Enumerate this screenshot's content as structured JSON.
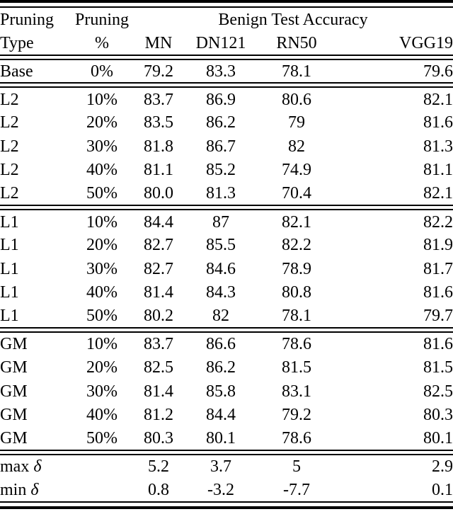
{
  "colors": {
    "text": "#000000",
    "background": "#ffffff",
    "rule": "#000000"
  },
  "table": {
    "header": {
      "col1": [
        "Pruning",
        "Type"
      ],
      "col2": [
        "Pruning",
        "%"
      ],
      "group_label": "Benign Test Accuracy",
      "models": [
        "MN",
        "DN121",
        "RN50",
        "VGG19"
      ]
    },
    "sections": [
      {
        "name": "base",
        "rows": [
          {
            "type": "Base",
            "pct": "0%",
            "cells": [
              {
                "v": "79.2"
              },
              {
                "v": "83.3"
              },
              {
                "v": "78.1"
              },
              {
                "v": "79.6"
              }
            ]
          }
        ]
      },
      {
        "name": "l2",
        "rows": [
          {
            "type": "L2",
            "pct": "10%",
            "cells": [
              {
                "v": "83.7",
                "bold": true
              },
              {
                "v": "86.9",
                "bold": true
              },
              {
                "v": "80.6"
              },
              {
                "v": "82.1",
                "bold": true
              }
            ]
          },
          {
            "type": "L2",
            "pct": "20%",
            "cells": [
              {
                "v": "83.5"
              },
              {
                "v": "86.2"
              },
              {
                "v": "79"
              },
              {
                "v": "81.6"
              }
            ]
          },
          {
            "type": "L2",
            "pct": "30%",
            "cells": [
              {
                "v": "81.8"
              },
              {
                "v": "86.7"
              },
              {
                "v": "82",
                "bold": true
              },
              {
                "v": "81.3"
              }
            ]
          },
          {
            "type": "L2",
            "pct": "40%",
            "cells": [
              {
                "v": "81.1"
              },
              {
                "v": "85.2"
              },
              {
                "v": "74.9"
              },
              {
                "v": "81.1"
              }
            ]
          },
          {
            "type": "L2",
            "pct": "50%",
            "cells": [
              {
                "v": "80.0"
              },
              {
                "v": "81.3"
              },
              {
                "v": "70.4"
              },
              {
                "v": "82.1"
              }
            ]
          }
        ]
      },
      {
        "name": "l1",
        "rows": [
          {
            "type": "L1",
            "pct": "10%",
            "cells": [
              {
                "v": "84.4",
                "bold": true
              },
              {
                "v": "87",
                "bold": true
              },
              {
                "v": "82.1"
              },
              {
                "v": "82.2",
                "bold": true
              }
            ]
          },
          {
            "type": "L1",
            "pct": "20%",
            "cells": [
              {
                "v": "82.7"
              },
              {
                "v": "85.5"
              },
              {
                "v": "82.2",
                "bold": true
              },
              {
                "v": "81.9"
              }
            ]
          },
          {
            "type": "L1",
            "pct": "30%",
            "cells": [
              {
                "v": "82.7"
              },
              {
                "v": "84.6"
              },
              {
                "v": "78.9"
              },
              {
                "v": "81.7"
              }
            ]
          },
          {
            "type": "L1",
            "pct": "40%",
            "cells": [
              {
                "v": "81.4"
              },
              {
                "v": "84.3"
              },
              {
                "v": "80.8"
              },
              {
                "v": "81.6"
              }
            ]
          },
          {
            "type": "L1",
            "pct": "50%",
            "cells": [
              {
                "v": "80.2"
              },
              {
                "v": "82"
              },
              {
                "v": "78.1"
              },
              {
                "v": "79.7"
              }
            ]
          }
        ]
      },
      {
        "name": "gm",
        "rows": [
          {
            "type": "GM",
            "pct": "10%",
            "cells": [
              {
                "v": "83.7"
              },
              {
                "v": "86.6"
              },
              {
                "v": "78.6"
              },
              {
                "v": "81.6"
              }
            ]
          },
          {
            "type": "GM",
            "pct": "20%",
            "cells": [
              {
                "v": "82.5"
              },
              {
                "v": "86.2"
              },
              {
                "v": "81.5"
              },
              {
                "v": "81.5"
              }
            ]
          },
          {
            "type": "GM",
            "pct": "30%",
            "cells": [
              {
                "v": "81.4"
              },
              {
                "v": "85.8"
              },
              {
                "v": "83.1"
              },
              {
                "v": "82.5",
                "bold": true
              }
            ]
          },
          {
            "type": "GM",
            "pct": "40%",
            "cells": [
              {
                "v": "81.2"
              },
              {
                "v": "84.4"
              },
              {
                "v": "79.2"
              },
              {
                "v": "80.3"
              }
            ]
          },
          {
            "type": "GM",
            "pct": "50%",
            "cells": [
              {
                "v": "80.3"
              },
              {
                "v": "80.1",
                "bold": true
              },
              {
                "v": "78.6"
              },
              {
                "v": "80.1"
              }
            ]
          }
        ]
      },
      {
        "name": "delta",
        "rows": [
          {
            "type": "max",
            "type_symbol": "δ",
            "pct": "",
            "cells": [
              {
                "v": "5.2",
                "bold": true
              },
              {
                "v": "3.7",
                "bold": true
              },
              {
                "v": "5",
                "bold": true
              },
              {
                "v": "2.9",
                "bold": true
              }
            ]
          },
          {
            "type": "min",
            "type_symbol": "δ",
            "pct": "",
            "cells": [
              {
                "v": "0.8",
                "bold": true
              },
              {
                "v": "-3.2"
              },
              {
                "v": "-7.7"
              },
              {
                "v": "0.1",
                "bold": true
              }
            ]
          }
        ]
      }
    ]
  }
}
